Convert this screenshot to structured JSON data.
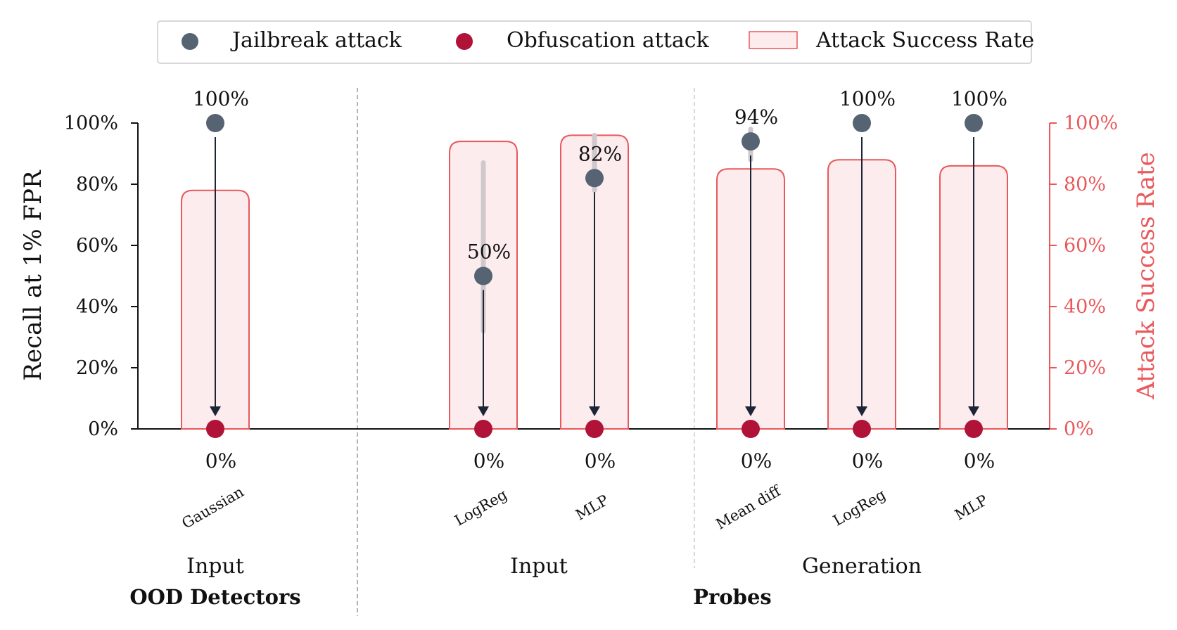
{
  "chart_data": {
    "type": "bar",
    "left_axis": {
      "label": "Recall at 1% FPR",
      "ylim": [
        0,
        100
      ],
      "ticks": [
        "0%",
        "20%",
        "40%",
        "60%",
        "80%",
        "100%"
      ]
    },
    "right_axis": {
      "label": "Attack Success Rate",
      "ylim": [
        0,
        100
      ],
      "ticks": [
        "0%",
        "20%",
        "40%",
        "60%",
        "80%",
        "100%"
      ]
    },
    "legend": {
      "placement": "top-center",
      "entries": [
        "Jailbreak attack",
        "Obfuscation attack",
        "Attack Success Rate"
      ]
    },
    "categories": [
      "Gaussian",
      "LogReg",
      "MLP",
      "Mean diff",
      "LogReg",
      "MLP"
    ],
    "series": [
      {
        "name": "Jailbreak attack",
        "values": [
          100,
          50,
          82,
          94,
          100,
          100
        ],
        "value_labels": [
          "100%",
          "50%",
          "82%",
          "94%",
          "100%",
          "100%"
        ],
        "error_low": [
          100,
          32,
          78,
          88,
          100,
          100
        ],
        "error_high": [
          100,
          87,
          96,
          98,
          100,
          100
        ]
      },
      {
        "name": "Obfuscation attack",
        "values": [
          0,
          0,
          0,
          0,
          0,
          0
        ],
        "value_labels": [
          "0%",
          "0%",
          "0%",
          "0%",
          "0%",
          "0%"
        ]
      },
      {
        "name": "Attack Success Rate",
        "values": [
          78,
          94,
          96,
          85,
          88,
          86
        ]
      }
    ],
    "subgroups": [
      "Input",
      "Input",
      "Generation"
    ],
    "groups": [
      "OOD Detectors",
      "Probes"
    ],
    "colors": {
      "jailbreak": "#566373",
      "obfuscation": "#b01238",
      "asr_stroke": "#e8585c",
      "asr_fill": "#fdeced",
      "arrow": "#1c2535",
      "error_bar": "#cfc8cc"
    }
  }
}
